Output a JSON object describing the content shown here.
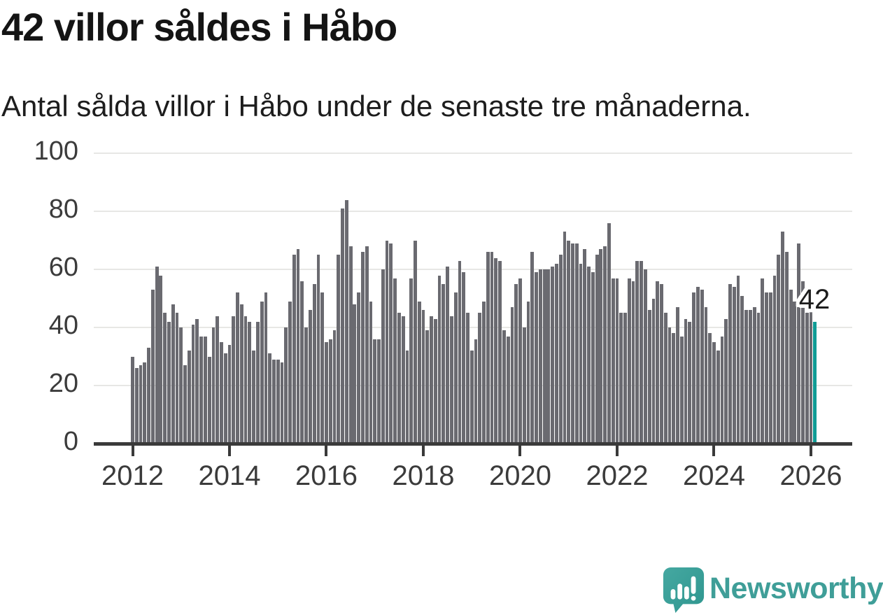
{
  "header": {
    "title": "42 villor såldes i Håbo",
    "subtitle": "Antal sålda villor i Håbo under de senaste tre månaderna."
  },
  "chart_data": {
    "type": "bar",
    "title": "42 villor såldes i Håbo",
    "subtitle": "Antal sålda villor i Håbo under de senaste tre månaderna.",
    "x_start": "2012-01",
    "frequency": "monthly",
    "x_tick_labels": [
      "2012",
      "2014",
      "2016",
      "2018",
      "2020",
      "2022",
      "2024",
      "2026"
    ],
    "y_ticks": [
      0,
      20,
      40,
      60,
      80,
      100
    ],
    "ylim": [
      0,
      100
    ],
    "grid": true,
    "legend": false,
    "bar_color": "#6A6A70",
    "highlight": {
      "index": 169,
      "label": "42",
      "value": 42,
      "color": "#109C95"
    },
    "values": [
      30,
      26,
      27,
      28,
      33,
      53,
      61,
      58,
      45,
      42,
      48,
      45,
      40,
      27,
      32,
      41,
      43,
      37,
      37,
      30,
      40,
      44,
      35,
      31,
      34,
      44,
      52,
      48,
      44,
      42,
      32,
      42,
      49,
      52,
      31,
      29,
      29,
      28,
      40,
      49,
      65,
      67,
      56,
      40,
      46,
      55,
      65,
      52,
      35,
      36,
      39,
      65,
      81,
      84,
      68,
      48,
      52,
      66,
      68,
      49,
      36,
      36,
      60,
      70,
      69,
      57,
      45,
      44,
      32,
      57,
      70,
      49,
      46,
      39,
      44,
      43,
      58,
      55,
      61,
      44,
      52,
      63,
      59,
      45,
      32,
      36,
      45,
      49,
      66,
      66,
      64,
      63,
      39,
      37,
      47,
      55,
      57,
      40,
      49,
      66,
      59,
      60,
      60,
      60,
      61,
      62,
      65,
      73,
      70,
      69,
      69,
      62,
      67,
      61,
      59,
      65,
      67,
      68,
      76,
      57,
      57,
      45,
      45,
      57,
      56,
      63,
      63,
      60,
      46,
      50,
      56,
      55,
      45,
      40,
      38,
      47,
      37,
      43,
      42,
      52,
      54,
      53,
      47,
      38,
      35,
      32,
      37,
      43,
      55,
      54,
      58,
      51,
      46,
      46,
      47,
      45,
      57,
      52,
      52,
      58,
      65,
      73,
      66,
      53,
      49,
      69,
      56,
      45,
      46,
      42
    ]
  },
  "footer": {
    "brand": "Newsworthy",
    "brand_color": "#3F9E98",
    "logo_icon": "newsworthy-speech-bubble-bar-chart-icon"
  }
}
